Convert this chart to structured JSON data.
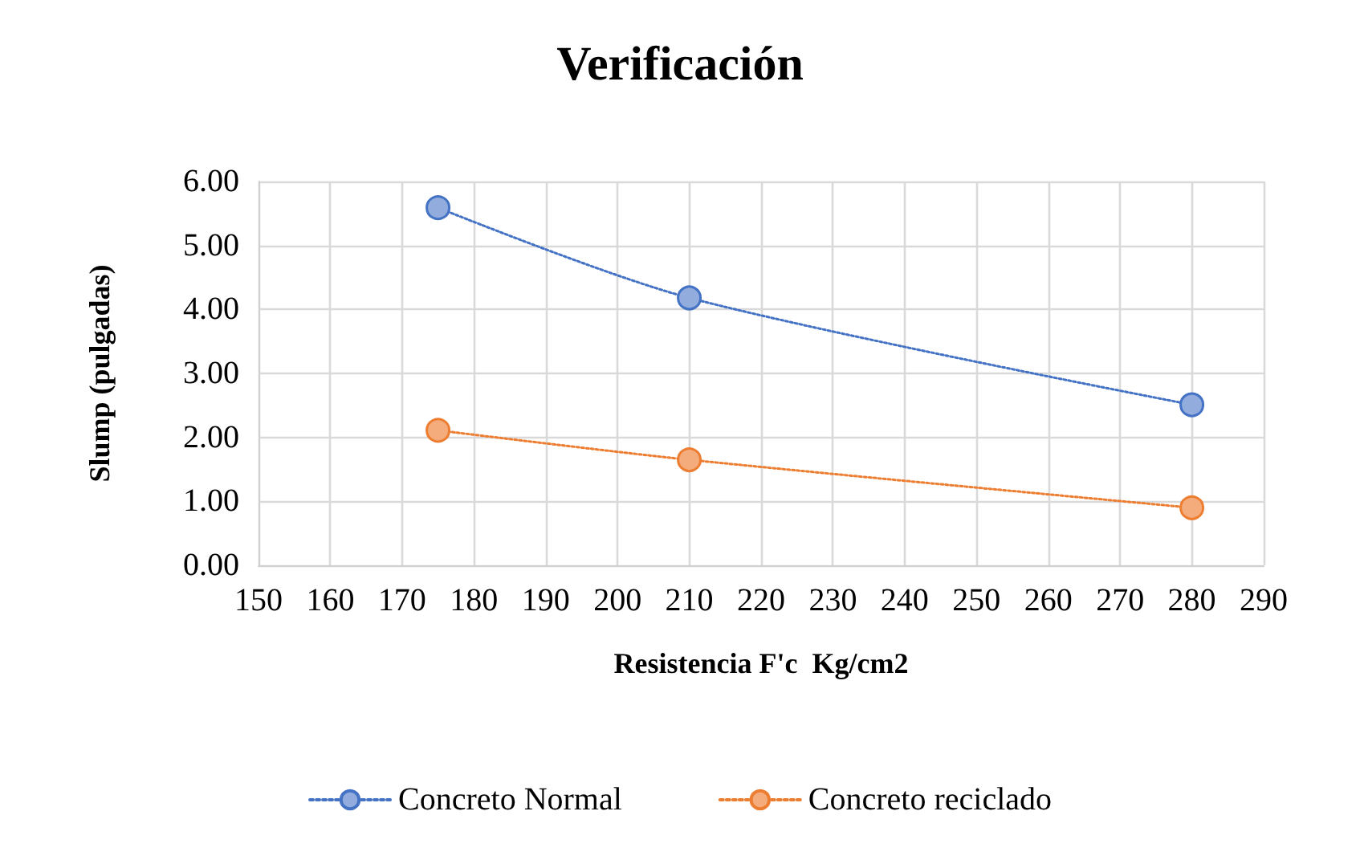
{
  "chart_data": {
    "type": "line",
    "title": "Verificación",
    "xlabel": "Resistencia F'c  Kg/cm2",
    "ylabel": "Slump (pulgadas)",
    "x": [
      175,
      210,
      280
    ],
    "series": [
      {
        "name": "Concreto Normal",
        "color": "#4472c4",
        "values": [
          5.59,
          4.18,
          2.51
        ]
      },
      {
        "name": "Concreto reciclado",
        "color": "#ed7d31",
        "values": [
          2.11,
          1.65,
          0.9
        ]
      }
    ],
    "xlim": [
      150,
      290
    ],
    "xticks": [
      150,
      160,
      170,
      180,
      190,
      200,
      210,
      220,
      230,
      240,
      250,
      260,
      270,
      280,
      290
    ],
    "ylim": [
      0,
      6
    ],
    "yticks": [
      {
        "value": 0,
        "label": "0.00"
      },
      {
        "value": 1,
        "label": "1.00"
      },
      {
        "value": 2,
        "label": "2.00"
      },
      {
        "value": 3,
        "label": "3.00"
      },
      {
        "value": 4,
        "label": "4.00"
      },
      {
        "value": 5,
        "label": "5.00"
      },
      {
        "value": 6,
        "label": "6.00"
      }
    ],
    "grid": true,
    "legend": "bottom",
    "marker": "circle",
    "line_style": "dotted"
  }
}
